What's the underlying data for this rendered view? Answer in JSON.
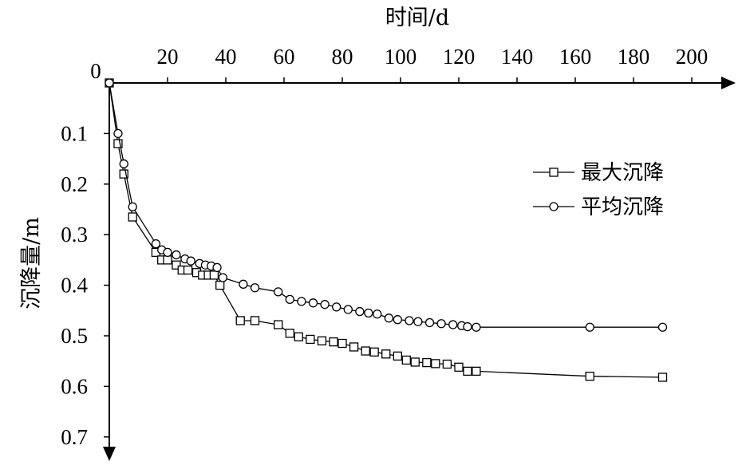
{
  "chart_data": {
    "type": "line",
    "xlabel": "时间/d",
    "ylabel": "沉降量/m",
    "x_ticks": [
      20,
      40,
      60,
      80,
      100,
      120,
      140,
      160,
      180,
      200
    ],
    "y_ticks": [
      0.1,
      0.2,
      0.3,
      0.4,
      0.5,
      0.6,
      0.7
    ],
    "origin_label": "0",
    "xlim": [
      0,
      205
    ],
    "ylim": [
      0,
      0.73
    ],
    "x_axis_position": "top",
    "y_axis_inverted": true,
    "grid": false,
    "legend_position": "right",
    "series": [
      {
        "name": "最大沉降",
        "marker": "square",
        "points": [
          [
            0,
            0.0
          ],
          [
            3,
            0.12
          ],
          [
            5,
            0.18
          ],
          [
            8,
            0.265
          ],
          [
            16,
            0.335
          ],
          [
            18,
            0.35
          ],
          [
            20,
            0.35
          ],
          [
            23,
            0.36
          ],
          [
            25,
            0.37
          ],
          [
            27,
            0.37
          ],
          [
            30,
            0.375
          ],
          [
            32,
            0.38
          ],
          [
            34,
            0.38
          ],
          [
            36,
            0.38
          ],
          [
            38,
            0.4
          ],
          [
            45,
            0.47
          ],
          [
            50,
            0.47
          ],
          [
            58,
            0.478
          ],
          [
            62,
            0.495
          ],
          [
            65,
            0.502
          ],
          [
            69,
            0.507
          ],
          [
            73,
            0.51
          ],
          [
            77,
            0.512
          ],
          [
            80,
            0.515
          ],
          [
            84,
            0.522
          ],
          [
            88,
            0.53
          ],
          [
            91,
            0.532
          ],
          [
            95,
            0.536
          ],
          [
            99,
            0.54
          ],
          [
            102,
            0.548
          ],
          [
            105,
            0.552
          ],
          [
            109,
            0.553
          ],
          [
            112,
            0.555
          ],
          [
            116,
            0.556
          ],
          [
            120,
            0.562
          ],
          [
            123,
            0.57
          ],
          [
            126,
            0.57
          ],
          [
            165,
            0.58
          ],
          [
            190,
            0.582
          ]
        ]
      },
      {
        "name": "平均沉降",
        "marker": "circle",
        "points": [
          [
            0,
            0.0
          ],
          [
            3,
            0.1
          ],
          [
            5,
            0.16
          ],
          [
            8,
            0.245
          ],
          [
            16,
            0.318
          ],
          [
            18,
            0.33
          ],
          [
            20,
            0.335
          ],
          [
            23,
            0.34
          ],
          [
            26,
            0.348
          ],
          [
            28,
            0.352
          ],
          [
            31,
            0.357
          ],
          [
            33,
            0.36
          ],
          [
            35,
            0.362
          ],
          [
            37,
            0.365
          ],
          [
            39,
            0.385
          ],
          [
            46,
            0.398
          ],
          [
            50,
            0.405
          ],
          [
            58,
            0.413
          ],
          [
            62,
            0.428
          ],
          [
            66,
            0.432
          ],
          [
            70,
            0.435
          ],
          [
            74,
            0.438
          ],
          [
            78,
            0.443
          ],
          [
            82,
            0.448
          ],
          [
            86,
            0.452
          ],
          [
            89,
            0.455
          ],
          [
            92,
            0.457
          ],
          [
            96,
            0.465
          ],
          [
            99,
            0.468
          ],
          [
            103,
            0.47
          ],
          [
            106,
            0.472
          ],
          [
            110,
            0.474
          ],
          [
            114,
            0.476
          ],
          [
            118,
            0.478
          ],
          [
            121,
            0.48
          ],
          [
            123,
            0.482
          ],
          [
            126,
            0.483
          ],
          [
            165,
            0.483
          ],
          [
            190,
            0.483
          ]
        ]
      }
    ]
  }
}
